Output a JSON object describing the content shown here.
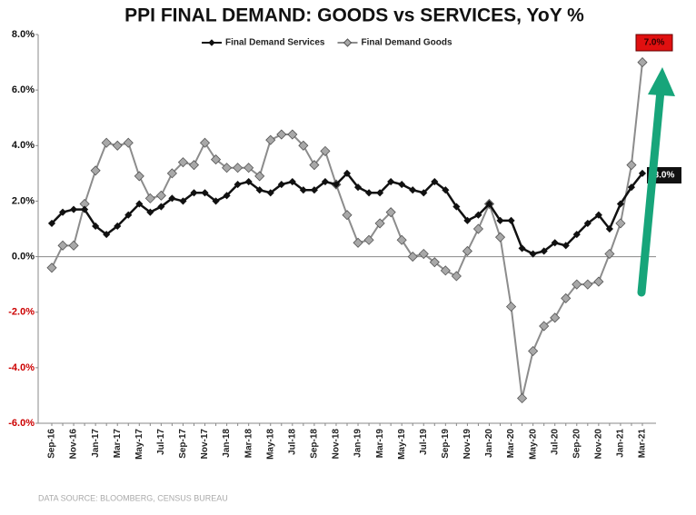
{
  "chart_data": {
    "type": "line",
    "title": "PPI FINAL DEMAND: GOODS vs SERVICES, YoY %",
    "categories": [
      "Sep-16",
      null,
      "Nov-16",
      null,
      "Jan-17",
      null,
      "Mar-17",
      null,
      "May-17",
      null,
      "Jul-17",
      null,
      "Sep-17",
      null,
      "Nov-17",
      null,
      "Jan-18",
      null,
      "Mar-18",
      null,
      "May-18",
      null,
      "Jul-18",
      null,
      "Sep-18",
      null,
      "Nov-18",
      null,
      "Jan-19",
      null,
      "Mar-19",
      null,
      "May-19",
      null,
      "Jul-19",
      null,
      "Sep-19",
      null,
      "Nov-19",
      null,
      "Jan-20",
      null,
      "Mar-20",
      null,
      "May-20",
      null,
      "Jul-20",
      null,
      "Sep-20",
      null,
      "Nov-20",
      null,
      "Jan-21",
      null,
      "Mar-21"
    ],
    "series": [
      {
        "name": "Final Demand Services",
        "color": "#111111",
        "values": [
          1.2,
          1.6,
          1.7,
          1.7,
          1.1,
          0.8,
          1.1,
          1.5,
          1.9,
          1.6,
          1.8,
          2.1,
          2.0,
          2.3,
          2.3,
          2.0,
          2.2,
          2.6,
          2.7,
          2.4,
          2.3,
          2.6,
          2.7,
          2.4,
          2.4,
          2.7,
          2.6,
          3.0,
          2.5,
          2.3,
          2.3,
          2.7,
          2.6,
          2.4,
          2.3,
          2.7,
          2.4,
          1.8,
          1.3,
          1.5,
          1.9,
          1.3,
          1.3,
          0.3,
          0.1,
          0.2,
          0.5,
          0.4,
          0.8,
          1.2,
          1.5,
          1.0,
          1.9,
          2.5,
          3.0
        ]
      },
      {
        "name": "Final Demand Goods",
        "color": "#8c8c8c",
        "values": [
          -0.4,
          0.4,
          0.4,
          1.9,
          3.1,
          4.1,
          4.0,
          4.1,
          2.9,
          2.1,
          2.2,
          3.0,
          3.4,
          3.3,
          4.1,
          3.5,
          3.2,
          3.2,
          3.2,
          2.9,
          4.2,
          4.4,
          4.4,
          4.0,
          3.3,
          3.8,
          2.6,
          1.5,
          0.5,
          0.6,
          1.2,
          1.6,
          0.6,
          0.0,
          0.1,
          -0.2,
          -0.5,
          -0.7,
          0.2,
          1.0,
          1.9,
          0.7,
          -1.8,
          -5.1,
          -3.4,
          -2.5,
          -2.2,
          -1.5,
          -1.0,
          -1.0,
          -0.9,
          0.1,
          1.2,
          3.3,
          7.0
        ]
      }
    ],
    "ylim": [
      -6,
      8
    ],
    "yticks": [
      {
        "value": -6,
        "label": "-6.0%"
      },
      {
        "value": -4,
        "label": "-4.0%"
      },
      {
        "value": -2,
        "label": "-2.0%"
      },
      {
        "value": 0,
        "label": "0.0%"
      },
      {
        "value": 2,
        "label": "2.0%"
      },
      {
        "value": 4,
        "label": "4.0%"
      },
      {
        "value": 6,
        "label": "6.0%"
      },
      {
        "value": 8,
        "label": "8.0%"
      }
    ],
    "negative_tick_color": "#cc0000",
    "annotations": [
      "7.0%",
      "3.0%"
    ],
    "source": "DATA SOURCE: BLOOMBERG, CENSUS BUREAU"
  }
}
